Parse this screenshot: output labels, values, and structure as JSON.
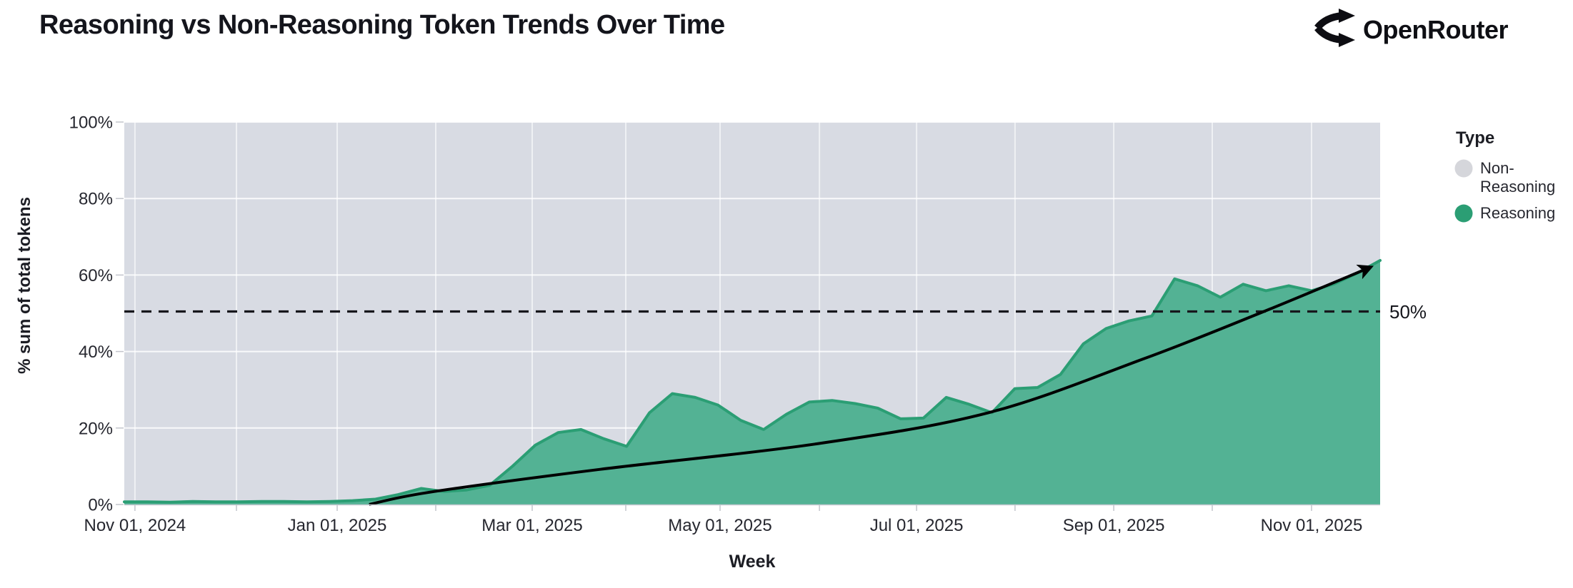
{
  "header": {
    "title": "Reasoning vs Non-Reasoning Token Trends Over Time",
    "brand": "OpenRouter"
  },
  "axes": {
    "x_title": "Week",
    "y_title": "% sum of total tokens"
  },
  "annotations": {
    "fifty_label": "50%"
  },
  "legend": {
    "title": "Type",
    "items": [
      {
        "name": "Non-Reasoning",
        "label_line1": "Non-",
        "label_line2": "Reasoning",
        "color": "#d5d6db"
      },
      {
        "name": "Reasoning",
        "label_line1": "Reasoning",
        "label_line2": "",
        "color": "#2b9e74"
      }
    ]
  },
  "chart_data": {
    "type": "area",
    "stack_type": "percent",
    "title": "Reasoning vs Non-Reasoning Token Trends Over Time",
    "xlabel": "Week",
    "ylabel": "% sum of total tokens",
    "ylim": [
      0,
      100
    ],
    "grid": true,
    "legend_position": "right",
    "y_ticks": [
      {
        "label": "0%",
        "v": 0
      },
      {
        "label": "20%",
        "v": 20
      },
      {
        "label": "40%",
        "v": 40
      },
      {
        "label": "60%",
        "v": 60
      },
      {
        "label": "80%",
        "v": 80
      },
      {
        "label": "100%",
        "v": 100
      }
    ],
    "x_ticks": [
      {
        "label": "Nov 01, 2024",
        "f": 0.0085
      },
      {
        "label": "Jan 01, 2025",
        "f": 0.1695
      },
      {
        "label": "Mar 01, 2025",
        "f": 0.3248
      },
      {
        "label": "May 01, 2025",
        "f": 0.4744
      },
      {
        "label": "Jul 01, 2025",
        "f": 0.6309
      },
      {
        "label": "Sep 01, 2025",
        "f": 0.7879
      },
      {
        "label": "Nov 01, 2025",
        "f": 0.9454
      }
    ],
    "minor_x_ticks": [
      0.0893,
      0.248,
      0.3993,
      0.5535,
      0.7093,
      0.8663
    ],
    "weeks": [
      "Oct 27, 2024",
      "Nov 03, 2024",
      "Nov 10, 2024",
      "Nov 17, 2024",
      "Nov 24, 2024",
      "Dec 01, 2024",
      "Dec 08, 2024",
      "Dec 15, 2024",
      "Dec 22, 2024",
      "Dec 29, 2024",
      "Jan 05, 2025",
      "Jan 12, 2025",
      "Jan 19, 2025",
      "Jan 26, 2025",
      "Feb 02, 2025",
      "Feb 09, 2025",
      "Feb 16, 2025",
      "Feb 23, 2025",
      "Mar 02, 2025",
      "Mar 09, 2025",
      "Mar 16, 2025",
      "Mar 23, 2025",
      "Mar 30, 2025",
      "Apr 06, 2025",
      "Apr 13, 2025",
      "Apr 20, 2025",
      "Apr 27, 2025",
      "May 04, 2025",
      "May 11, 2025",
      "May 18, 2025",
      "May 25, 2025",
      "Jun 01, 2025",
      "Jun 08, 2025",
      "Jun 15, 2025",
      "Jun 22, 2025",
      "Jun 29, 2025",
      "Jul 06, 2025",
      "Jul 13, 2025",
      "Jul 20, 2025",
      "Jul 27, 2025",
      "Aug 03, 2025",
      "Aug 10, 2025",
      "Aug 17, 2025",
      "Aug 24, 2025",
      "Aug 31, 2025",
      "Sep 07, 2025",
      "Sep 14, 2025",
      "Sep 21, 2025",
      "Sep 28, 2025",
      "Oct 05, 2025",
      "Oct 12, 2025",
      "Oct 19, 2025",
      "Oct 26, 2025",
      "Nov 02, 2025",
      "Nov 09, 2025",
      "Nov 16, 2025"
    ],
    "series": [
      {
        "name": "Non-Reasoning",
        "color": "#d8dbe3",
        "values": [
          99.3,
          99.3,
          99.4,
          99.2,
          99.3,
          99.3,
          99.2,
          99.2,
          99.3,
          99.2,
          99.0,
          98.6,
          97.4,
          95.8,
          96.6,
          96.2,
          95.0,
          90.0,
          84.5,
          81.2,
          80.4,
          82.8,
          84.8,
          76.0,
          71.0,
          72.0,
          74.0,
          78.0,
          80.4,
          76.4,
          73.2,
          72.8,
          73.6,
          74.8,
          77.6,
          77.4,
          72.0,
          73.8,
          76.0,
          69.7,
          69.4,
          66.0,
          58.0,
          54.0,
          52.0,
          50.7,
          41.0,
          42.8,
          45.8,
          42.4,
          44.1,
          42.8,
          44.1,
          42.3,
          39.5,
          36.2
        ]
      },
      {
        "name": "Reasoning",
        "color": "#53b294",
        "stroke": "#2b9e74",
        "values": [
          0.7,
          0.7,
          0.6,
          0.8,
          0.7,
          0.7,
          0.8,
          0.8,
          0.7,
          0.8,
          1.0,
          1.4,
          2.6,
          4.2,
          3.4,
          3.8,
          5.0,
          10.0,
          15.5,
          18.8,
          19.6,
          17.2,
          15.2,
          24.0,
          29.0,
          28.0,
          26.0,
          22.0,
          19.6,
          23.6,
          26.8,
          27.2,
          26.4,
          25.2,
          22.4,
          22.6,
          28.0,
          26.2,
          24.0,
          30.3,
          30.6,
          34.0,
          42.0,
          46.0,
          48.0,
          49.3,
          59.0,
          57.2,
          54.2,
          57.6,
          55.9,
          57.2,
          55.9,
          57.7,
          60.5,
          63.8
        ]
      }
    ],
    "reference_line": {
      "value": 50,
      "label": "50%",
      "style": "dashed",
      "color": "#17171c"
    },
    "trend_arrow": {
      "description": "black curved arrow showing exponential growth of reasoning share",
      "color": "#000000",
      "points_f_pct": [
        [
          0.195,
          0
        ],
        [
          0.243,
          3.2
        ],
        [
          0.379,
          9.2
        ],
        [
          0.55,
          15.8
        ],
        [
          0.688,
          24.0
        ],
        [
          0.811,
          38.0
        ],
        [
          0.904,
          50.0
        ],
        [
          0.992,
          62.0
        ]
      ]
    }
  }
}
